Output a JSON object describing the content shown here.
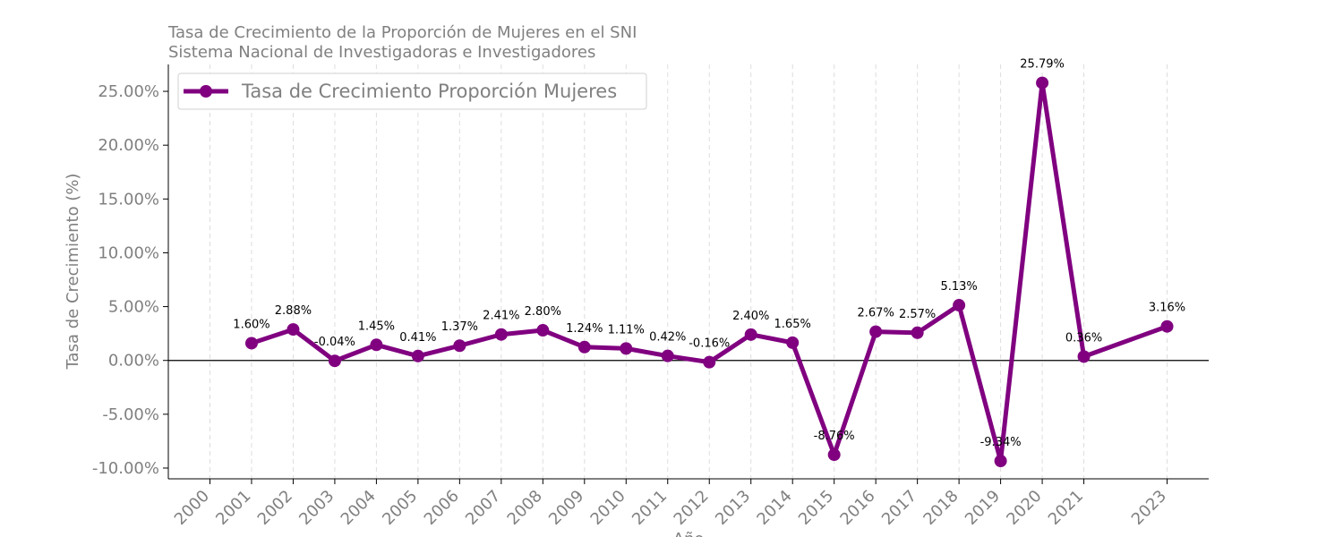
{
  "chart_data": {
    "type": "line",
    "title": "Tasa de Crecimiento de la Proporción de Mujeres en el SNI",
    "subtitle": "Sistema Nacional de Investigadoras e Investigadores",
    "xlabel": "Año",
    "ylabel": "Tasa de Crecimiento (%)",
    "xticks": [
      2000,
      2001,
      2002,
      2003,
      2004,
      2005,
      2006,
      2007,
      2008,
      2009,
      2010,
      2011,
      2012,
      2013,
      2014,
      2015,
      2016,
      2017,
      2018,
      2019,
      2020,
      2021,
      2023
    ],
    "xlim": [
      1999,
      2024
    ],
    "ylim": [
      -11,
      27.5
    ],
    "yticks": [
      -10,
      -5,
      0,
      5,
      10,
      15,
      20,
      25
    ],
    "ytick_labels": [
      "-10.00%",
      "-5.00%",
      "0.00%",
      "5.00%",
      "10.00%",
      "15.00%",
      "20.00%",
      "25.00%"
    ],
    "grid": "vertical dashed",
    "legend_position": "top-left",
    "color": "#800080",
    "series": [
      {
        "name": "Tasa de Crecimiento Proporción Mujeres",
        "x": [
          2001,
          2002,
          2003,
          2004,
          2005,
          2006,
          2007,
          2008,
          2009,
          2010,
          2011,
          2012,
          2013,
          2014,
          2015,
          2016,
          2017,
          2018,
          2019,
          2020,
          2021,
          2023
        ],
        "values": [
          1.6,
          2.88,
          -0.04,
          1.45,
          0.41,
          1.37,
          2.41,
          2.8,
          1.24,
          1.11,
          0.42,
          -0.16,
          2.4,
          1.65,
          -8.76,
          2.67,
          2.57,
          5.13,
          -9.34,
          25.79,
          0.36,
          3.16
        ],
        "labels": [
          "1.60%",
          "2.88%",
          "-0.04%",
          "1.45%",
          "0.41%",
          "1.37%",
          "2.41%",
          "2.80%",
          "1.24%",
          "1.11%",
          "0.42%",
          "-0.16%",
          "2.40%",
          "1.65%",
          "-8.76%",
          "2.67%",
          "2.57%",
          "5.13%",
          "-9.34%",
          "25.79%",
          "0.36%",
          "3.16%"
        ]
      }
    ]
  }
}
